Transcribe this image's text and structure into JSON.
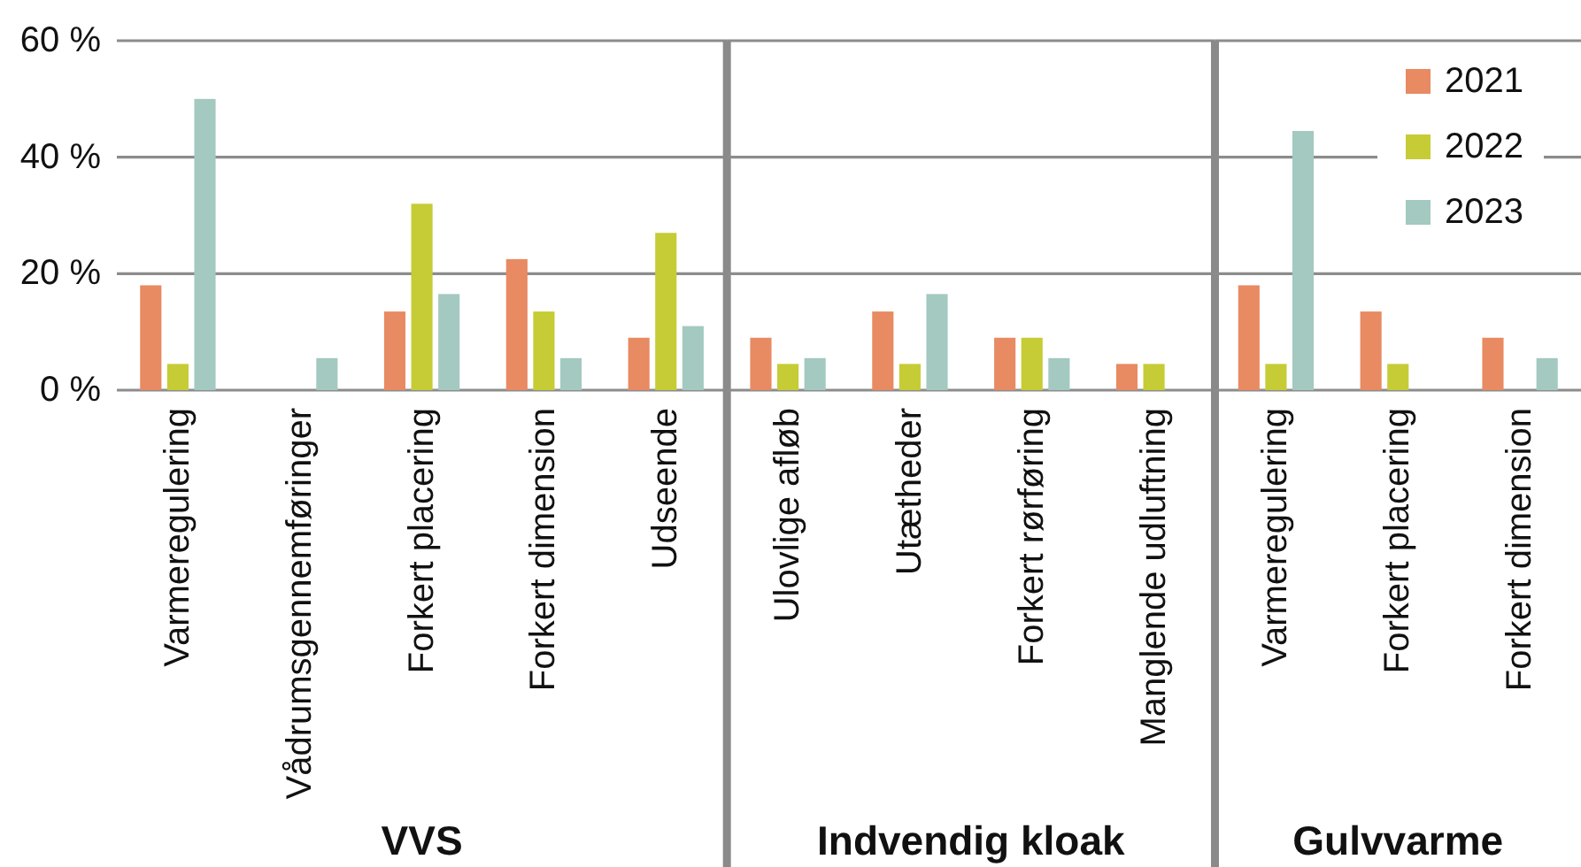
{
  "chart_data": [
    {
      "type": "bar",
      "xlabel": "VVS",
      "categories": [
        "Varmeregulering",
        "Vådrumsgennemføringer",
        "Forkert placering",
        "Forkert dimension",
        "Udseende"
      ],
      "series": [
        {
          "color": "#e88a62",
          "values": [
            18,
            null,
            13.5,
            22.5,
            9
          ]
        },
        {
          "color": "#c5cc35",
          "values": [
            4.5,
            null,
            32,
            13.5,
            27
          ]
        },
        {
          "color": "#a3c9c1",
          "values": [
            50,
            5.5,
            16.5,
            5.5,
            11
          ]
        }
      ],
      "ylim": [
        0,
        60
      ],
      "yticks": [
        {
          "value": 0,
          "label": "0 %"
        },
        {
          "value": 20,
          "label": "20 %"
        },
        {
          "value": 40,
          "label": "40 %"
        },
        {
          "value": 60,
          "label": "60 %"
        }
      ],
      "grid": "y"
    },
    {
      "type": "bar",
      "xlabel": "Indvendig kloak",
      "categories": [
        "Ulovlige afløb",
        "Utætheder",
        "Forkert rørføring",
        "Manglende udluftning"
      ],
      "series": [
        {
          "color": "#e88a62",
          "values": [
            9,
            13.5,
            9,
            4.5
          ]
        },
        {
          "color": "#c5cc35",
          "values": [
            4.5,
            4.5,
            9,
            4.5
          ]
        },
        {
          "color": "#a3c9c1",
          "values": [
            5.5,
            16.5,
            5.5,
            null
          ]
        }
      ],
      "ylim": [
        0,
        60
      ],
      "yticks": [
        {
          "value": 0,
          "label": null
        },
        {
          "value": 20,
          "label": null
        },
        {
          "value": 40,
          "label": null
        },
        {
          "value": 60,
          "label": null
        }
      ],
      "grid": "y",
      "tick_labels": "x"
    },
    {
      "type": "bar",
      "xlabel": "Gulvvarme",
      "categories": [
        "Varmeregulering",
        "Forkert placering",
        "Forkert dimension"
      ],
      "series": [
        {
          "name": "2021",
          "color": "#e88a62",
          "values": [
            18,
            13.5,
            9
          ]
        },
        {
          "name": "2022",
          "color": "#c5cc35",
          "values": [
            4.5,
            4.5,
            null
          ]
        },
        {
          "name": "2023",
          "color": "#a3c9c1",
          "values": [
            44.5,
            null,
            5.5
          ]
        }
      ],
      "ylim": [
        0,
        60
      ],
      "yticks": [
        {
          "value": 0,
          "label": null
        },
        {
          "value": 20,
          "label": null
        },
        {
          "value": 40,
          "label": null
        },
        {
          "value": 60,
          "label": null
        }
      ],
      "grid": "y",
      "tick_labels": "x",
      "legend": "top right"
    }
  ]
}
